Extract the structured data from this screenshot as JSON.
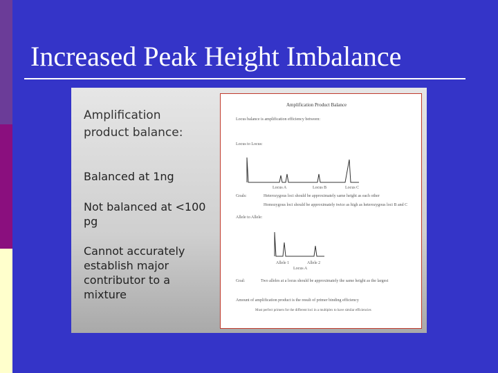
{
  "slide": {
    "title": "Increased Peak Height Imbalance",
    "points": [
      "Amplification product balance:",
      "Balanced at 1ng",
      "Not balanced at <100 pg",
      "Cannot accurately establish major contributor to a mixture"
    ],
    "document": {
      "heading": "Amplification Product Balance",
      "lines": [
        "Locus balance is amplification efficiency between:",
        "Locus to Locus:",
        "Goals:",
        "Heterozygous loci should be approximately same height as each other",
        "Homozygous loci should be approximately twice as high as heterozygous loci B and C",
        "Allele to Allele:",
        "Goal:",
        "Two alleles at a locus should be approximately the same height as the largest",
        "Amount of amplification product is the result of primer binding efficiency",
        "Must perfect primers for the different loci in a multiplex to have similar efficiencies"
      ],
      "labels": [
        "Locus A",
        "Locus B",
        "Locus C",
        "Allele 1",
        "Allele 2",
        "Locus A"
      ]
    }
  }
}
